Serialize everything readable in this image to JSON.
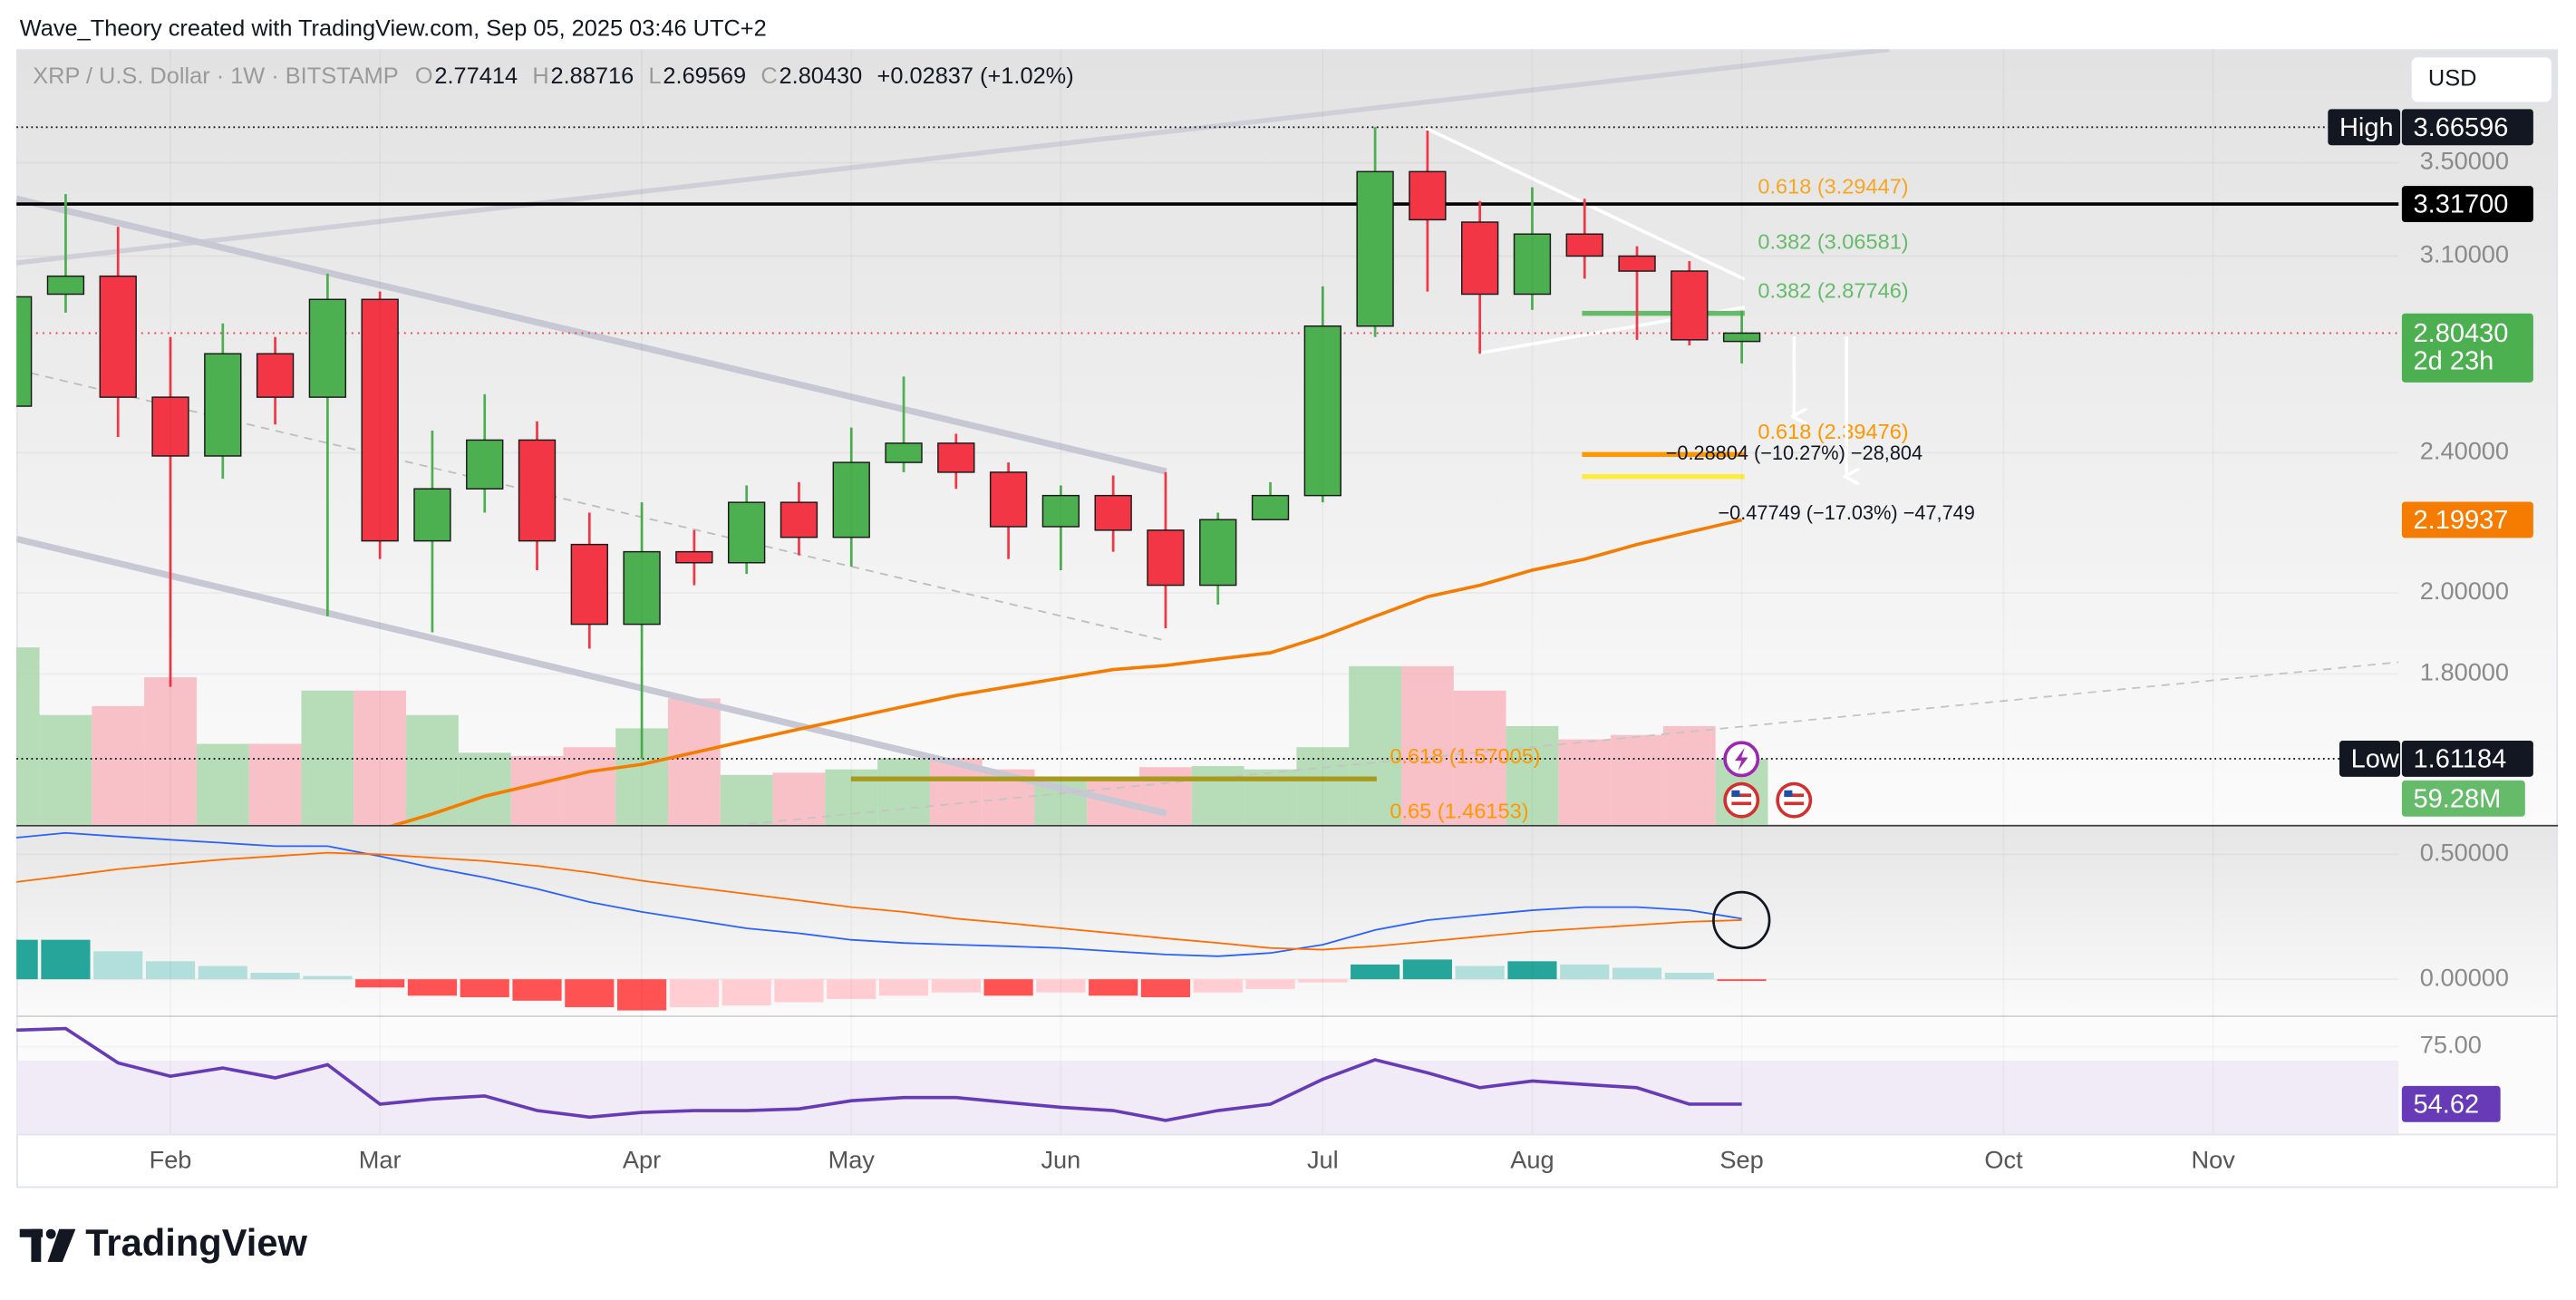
{
  "chart_data": {
    "type": "candlestick",
    "watermark": "Wave_Theory created with TradingView.com, Sep 05, 2025 03:46 UTC+2",
    "symbol": "XRP / U.S. Dollar · 1W · BITSTAMP",
    "ohlc_letters": [
      "O",
      "H",
      "L",
      "C"
    ],
    "change": "+0.02837 (+1.02%)",
    "currency": "USD",
    "brand": "TradingView",
    "xlim": [
      0.06,
      45.54
    ],
    "xticks": [
      {
        "value": 3,
        "label": "Feb"
      },
      {
        "value": 7,
        "label": "Mar"
      },
      {
        "value": 12,
        "label": "Apr"
      },
      {
        "value": 16,
        "label": "May"
      },
      {
        "value": 20,
        "label": "Jun"
      },
      {
        "value": 25,
        "label": "Jul"
      },
      {
        "value": 29,
        "label": "Aug"
      },
      {
        "value": 33,
        "label": "Sep"
      },
      {
        "value": 38,
        "label": "Oct"
      },
      {
        "value": 42,
        "label": "Nov"
      }
    ],
    "open": [
      2.55,
      2.95,
      3.02,
      2.58,
      2.39,
      2.73,
      2.58,
      2.93,
      2.14,
      2.29,
      2.44,
      2.13,
      1.92,
      2.11,
      2.08,
      2.25,
      2.15,
      2.37,
      2.43,
      2.34,
      2.18,
      2.27,
      2.17,
      2.02,
      2.2,
      2.27,
      2.83,
      3.46,
      3.24,
      2.95,
      3.19,
      3.1,
      3.04,
      2.77414
    ],
    "high": [
      3.0,
      3.36,
      3.22,
      2.79,
      2.84,
      2.79,
      3.03,
      2.96,
      2.47,
      2.59,
      2.5,
      2.22,
      2.25,
      2.17,
      2.3,
      2.31,
      2.48,
      2.65,
      2.46,
      2.37,
      2.3,
      2.33,
      2.34,
      2.22,
      2.31,
      2.98,
      3.66596,
      3.65,
      3.33,
      3.39,
      3.34,
      3.14,
      3.08,
      2.88716
    ],
    "low": [
      2.5,
      2.88,
      2.45,
      1.77,
      2.32,
      2.49,
      1.94,
      2.09,
      1.9,
      2.22,
      2.06,
      1.86,
      1.61184,
      2.02,
      2.05,
      2.1,
      2.07,
      2.34,
      2.29,
      2.09,
      2.06,
      2.11,
      1.91,
      1.97,
      2.2,
      2.25,
      2.79,
      2.96,
      2.73,
      2.89,
      3.01,
      2.78,
      2.76,
      2.69569
    ],
    "close": [
      2.94,
      3.02,
      2.58,
      2.39,
      2.73,
      2.58,
      2.93,
      2.14,
      2.29,
      2.44,
      2.14,
      1.92,
      2.11,
      2.08,
      2.25,
      2.15,
      2.37,
      2.43,
      2.34,
      2.18,
      2.27,
      2.17,
      2.02,
      2.2,
      2.27,
      2.83,
      3.46,
      3.25,
      2.95,
      3.19,
      3.1,
      3.04,
      2.78,
      2.8043
    ],
    "colors": {
      "up": "#4caf50",
      "down": "#f23645"
    },
    "ylim": [
      1.479,
      4.057
    ],
    "log_scale": true,
    "grid": true,
    "yticks": [
      {
        "value": 3.5,
        "label": "3.50000"
      },
      {
        "value": 3.1,
        "label": "3.10000"
      },
      {
        "value": 2.4,
        "label": "2.40000"
      },
      {
        "value": 2.0,
        "label": "2.00000"
      },
      {
        "value": 1.8,
        "label": "1.80000"
      }
    ],
    "current_price": {
      "value": 2.8043,
      "label": "2.80430",
      "countdown": "2d 23h",
      "color": "#4caf50"
    },
    "high_caption": "High",
    "low_caption": "Low",
    "horizontal_level": {
      "value": 3.317,
      "label": "3.31700",
      "color": "#000000"
    },
    "moving_average": {
      "color": "#f57c00",
      "values": [
        null,
        null,
        null,
        null,
        null,
        null,
        null,
        1.47,
        1.5,
        1.535,
        1.56,
        1.585,
        1.6,
        1.625,
        1.65,
        1.675,
        1.7,
        1.725,
        1.75,
        1.77,
        1.79,
        1.81,
        1.82,
        1.835,
        1.85,
        1.89,
        1.94,
        1.99,
        2.02,
        2.06,
        2.09,
        2.13,
        2.165,
        2.19937
      ]
    },
    "volume": {
      "vlim": [
        0,
        200
      ],
      "last_label": "59.28M",
      "color": "#66bb6a",
      "values": [
        160,
        99,
        107,
        133,
        73,
        73,
        121,
        121,
        99,
        65,
        62,
        70,
        87,
        114,
        45,
        47,
        50,
        60,
        60,
        50,
        40,
        40,
        52,
        53,
        50,
        70,
        143,
        143,
        121,
        89,
        77,
        81,
        89,
        59.28
      ]
    },
    "fib_levels": [
      {
        "label": "0.618 (3.29447)",
        "value": 3.29447,
        "color": "#f5a623"
      },
      {
        "label": "0.382 (3.06581)",
        "value": 3.06581,
        "color": "#66bb6a"
      },
      {
        "label": "0.382 (2.87746)",
        "value": 2.87746,
        "color": "#66bb6a"
      },
      {
        "label": "0.618 (2.39476)",
        "value": 2.39476,
        "color": "#ff9800"
      },
      {
        "label": "0.618 (1.57005)",
        "value": 1.57005,
        "color": "#ff9800"
      },
      {
        "label": "0.65 (1.46153)",
        "value": 1.46153,
        "color": "#ff9800"
      }
    ],
    "measures": [
      {
        "label": "−0.28804 (−10.27%) −28,804",
        "change": -0.28804
      },
      {
        "label": "−0.47749 (−17.03%) −47,749",
        "change": -0.47749
      }
    ],
    "macd": {
      "ylim": [
        -0.145,
        0.612
      ],
      "yticks": [
        {
          "value": 0.5,
          "label": "0.50000"
        },
        {
          "value": 0,
          "label": "0.00000"
        }
      ],
      "macd_line": {
        "color": "#2962ff",
        "values": [
          0.566,
          0.586,
          0.572,
          0.559,
          0.546,
          0.533,
          0.533,
          0.493,
          0.447,
          0.408,
          0.362,
          0.309,
          0.27,
          0.237,
          0.204,
          0.184,
          0.158,
          0.145,
          0.138,
          0.132,
          0.125,
          0.112,
          0.099,
          0.092,
          0.105,
          0.138,
          0.197,
          0.237,
          0.257,
          0.276,
          0.289,
          0.289,
          0.276,
          0.243
        ]
      },
      "signal_line": {
        "color": "#ff6d00",
        "values": [
          0.388,
          0.414,
          0.441,
          0.461,
          0.48,
          0.493,
          0.507,
          0.5,
          0.487,
          0.474,
          0.454,
          0.428,
          0.395,
          0.368,
          0.342,
          0.316,
          0.289,
          0.27,
          0.243,
          0.224,
          0.204,
          0.184,
          0.164,
          0.145,
          0.125,
          0.118,
          0.132,
          0.151,
          0.171,
          0.191,
          0.204,
          0.217,
          0.23,
          0.237
        ]
      },
      "histogram": [
        0.158,
        0.158,
        0.112,
        0.072,
        0.053,
        0.026,
        0.013,
        -0.033,
        -0.066,
        -0.072,
        -0.086,
        -0.112,
        -0.125,
        -0.112,
        -0.105,
        -0.092,
        -0.079,
        -0.066,
        -0.053,
        -0.066,
        -0.053,
        -0.066,
        -0.072,
        -0.053,
        -0.039,
        -0.013,
        0.059,
        0.079,
        0.053,
        0.072,
        0.059,
        0.046,
        0.026,
        -0.007
      ]
    },
    "rsi": {
      "ylim": [
        44.1,
        84.9
      ],
      "yticks": [
        {
          "value": 75,
          "label": "75.00"
        }
      ],
      "band": [
        30,
        70
      ],
      "color": "#673ab7",
      "values": [
        80.8,
        81.4,
        69.2,
        64.5,
        67.4,
        63.9,
        68.6,
        54.6,
        56.4,
        57.5,
        52.3,
        50.0,
        51.7,
        52.3,
        52.3,
        52.9,
        55.8,
        56.9,
        56.9,
        55.2,
        53.5,
        52.3,
        48.8,
        52.3,
        54.6,
        63.4,
        70.3,
        65.7,
        60.4,
        62.8,
        61.6,
        60.4,
        54.6,
        54.62
      ]
    }
  }
}
